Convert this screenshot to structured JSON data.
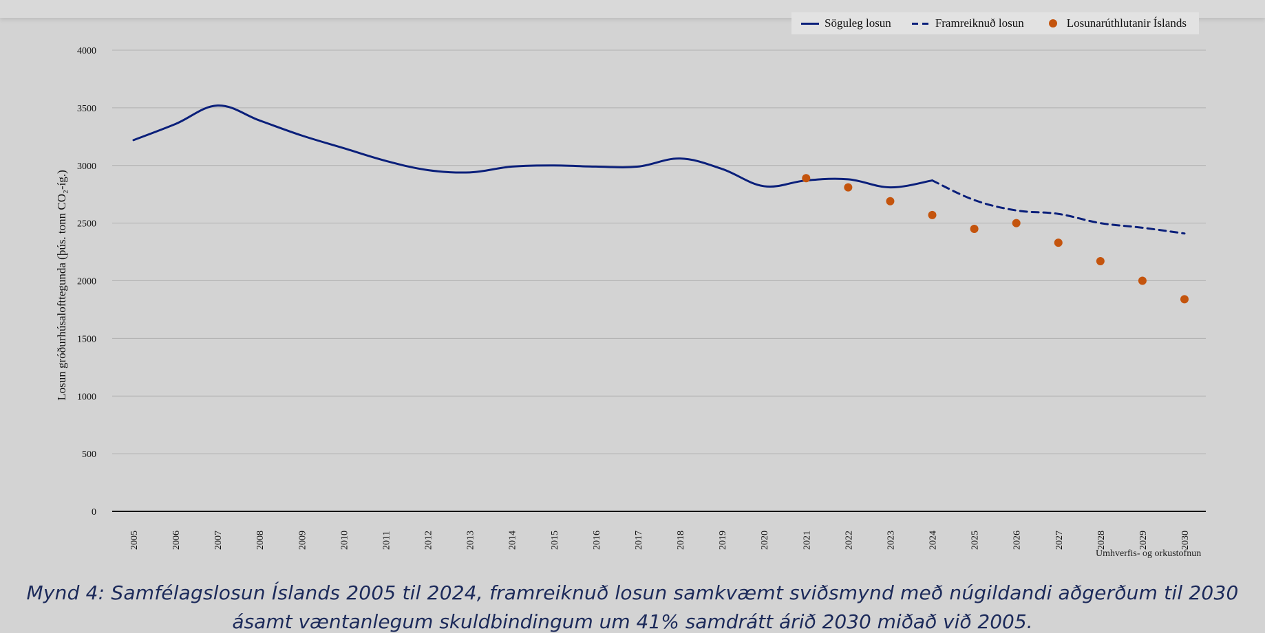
{
  "chart_data": {
    "type": "line",
    "ylabel": "Losun gróðurhúsalofttegunda (þús. tonn CO₂-íg.)",
    "ylim": [
      0,
      4000
    ],
    "yticks": [
      0,
      500,
      1000,
      1500,
      2000,
      2500,
      3000,
      3500,
      4000
    ],
    "x": [
      2005,
      2006,
      2007,
      2008,
      2009,
      2010,
      2011,
      2012,
      2013,
      2014,
      2015,
      2016,
      2017,
      2018,
      2019,
      2020,
      2021,
      2022,
      2023,
      2024,
      2025,
      2026,
      2027,
      2028,
      2029,
      2030
    ],
    "grid": true,
    "legend_position": "top-right",
    "series": [
      {
        "name": "Söguleg losun",
        "style": "solid",
        "color": "#0a1f7a",
        "x": [
          2005,
          2006,
          2007,
          2008,
          2009,
          2010,
          2011,
          2012,
          2013,
          2014,
          2015,
          2016,
          2017,
          2018,
          2019,
          2020,
          2021,
          2022,
          2023,
          2024
        ],
        "values": [
          3220,
          3360,
          3520,
          3390,
          3260,
          3150,
          3040,
          2960,
          2940,
          2990,
          3000,
          2990,
          2990,
          3060,
          2970,
          2820,
          2870,
          2880,
          2810,
          2870
        ]
      },
      {
        "name": "Framreiknuð losun",
        "style": "dashed",
        "color": "#0a1f7a",
        "x": [
          2024,
          2025,
          2026,
          2027,
          2028,
          2029,
          2030
        ],
        "values": [
          2870,
          2700,
          2610,
          2580,
          2500,
          2460,
          2410
        ]
      },
      {
        "name": "Losunarúthlutanir Íslands",
        "style": "markers",
        "color": "#c4540d",
        "x": [
          2021,
          2022,
          2023,
          2024,
          2025,
          2026,
          2027,
          2028,
          2029,
          2030
        ],
        "values": [
          2890,
          2810,
          2690,
          2570,
          2450,
          2500,
          2330,
          2170,
          2000,
          1840
        ]
      }
    ],
    "source": "Umhverfis- og orkustofnun"
  },
  "legend": {
    "items": [
      "Söguleg losun",
      "Framreiknuð losun",
      "Losunarúthlutanir Íslands"
    ]
  },
  "caption": {
    "line1": "Mynd 4: Samfélagslosun Íslands 2005 til 2024, framreiknuð losun samkvæmt sviðsmynd með núgildandi aðgerðum til 2030",
    "line2": "ásamt væntanlegum skuldbindingum um 41% samdrátt árið 2030 miðað við 2005."
  },
  "colors": {
    "background": "#d3d3d3",
    "line": "#0a1f7a",
    "markers": "#c4540d",
    "caption": "#1c2a5a"
  }
}
